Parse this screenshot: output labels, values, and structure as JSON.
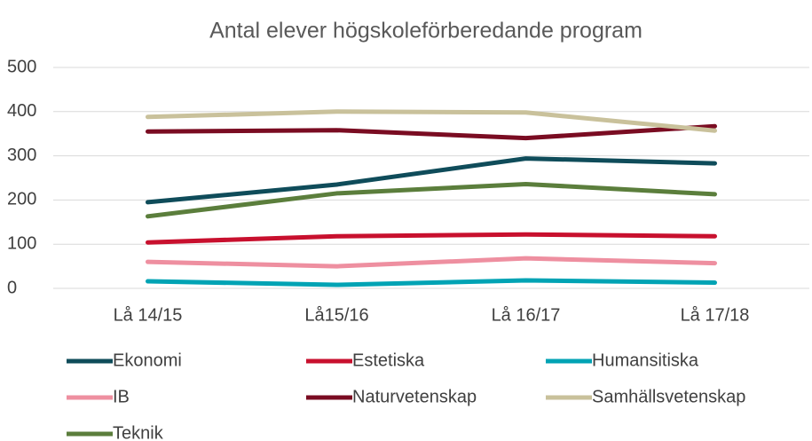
{
  "chart_data": {
    "type": "line",
    "title": "Antal elever högskoleförberedande program",
    "categories": [
      "Lå 14/15",
      "Lå15/16",
      "Lå 16/17",
      "Lå 17/18"
    ],
    "series": [
      {
        "name": "Ekonomi",
        "color": "#0f4c5a",
        "values": [
          195,
          235,
          294,
          283
        ]
      },
      {
        "name": "Estetiska",
        "color": "#c8102e",
        "values": [
          104,
          118,
          122,
          118
        ]
      },
      {
        "name": "Humansitiska",
        "color": "#00a3b4",
        "values": [
          16,
          8,
          18,
          13
        ]
      },
      {
        "name": "IB",
        "color": "#ee8fa0",
        "values": [
          60,
          50,
          68,
          57
        ]
      },
      {
        "name": "Naturvetenskap",
        "color": "#7a0c22",
        "values": [
          355,
          358,
          340,
          367
        ]
      },
      {
        "name": "Samhällsvetenskap",
        "color": "#c9c19b",
        "values": [
          388,
          400,
          398,
          357
        ]
      },
      {
        "name": "Teknik",
        "color": "#5b7e3c",
        "values": [
          163,
          215,
          236,
          213
        ]
      }
    ],
    "ylim": [
      0,
      500
    ],
    "yticks": [
      0,
      100,
      200,
      300,
      400,
      500
    ],
    "grid": true
  }
}
